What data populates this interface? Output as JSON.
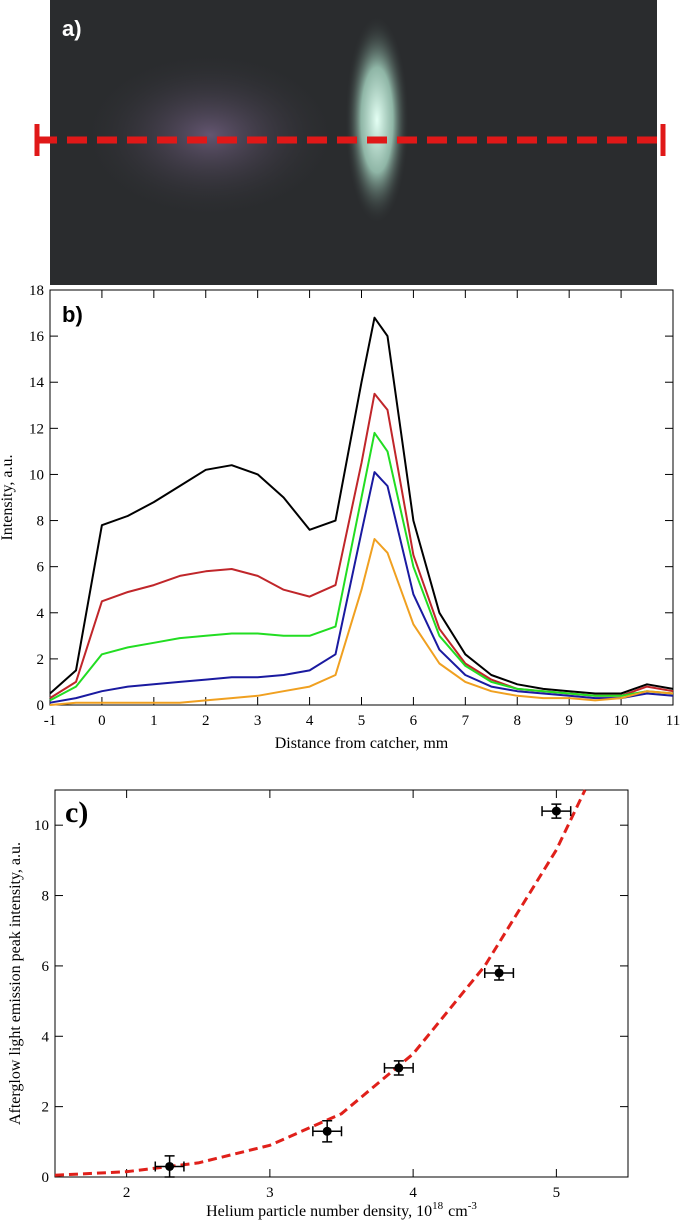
{
  "image_panel": {
    "label": "a)"
  },
  "chart_data": [
    {
      "type": "line",
      "label": "b)",
      "xlabel": "Distance from catcher, mm",
      "ylabel": "Intensity, a.u.",
      "x": [
        -1,
        -0.5,
        0,
        0.5,
        1,
        1.5,
        2,
        2.5,
        3,
        3.5,
        4,
        4.5,
        5,
        5.25,
        5.5,
        6,
        6.5,
        7,
        7.5,
        8,
        8.5,
        9,
        9.5,
        10,
        10.5,
        11
      ],
      "series": [
        {
          "color": "#000000",
          "values": [
            0.5,
            1.5,
            7.8,
            8.2,
            8.8,
            9.5,
            10.2,
            10.4,
            10.0,
            9.0,
            7.6,
            8.0,
            14.0,
            16.8,
            16.0,
            8.0,
            4.0,
            2.2,
            1.3,
            0.9,
            0.7,
            0.6,
            0.5,
            0.5,
            0.9,
            0.7
          ]
        },
        {
          "color": "#c0262a",
          "values": [
            0.3,
            1.0,
            4.5,
            4.9,
            5.2,
            5.6,
            5.8,
            5.9,
            5.6,
            5.0,
            4.7,
            5.2,
            10.5,
            13.5,
            12.8,
            6.5,
            3.3,
            1.8,
            1.1,
            0.7,
            0.6,
            0.5,
            0.4,
            0.4,
            0.8,
            0.6
          ]
        },
        {
          "color": "#22dd22",
          "values": [
            0.2,
            0.8,
            2.2,
            2.5,
            2.7,
            2.9,
            3.0,
            3.1,
            3.1,
            3.0,
            3.0,
            3.4,
            9.0,
            11.8,
            11.0,
            6.0,
            3.0,
            1.7,
            1.0,
            0.7,
            0.6,
            0.5,
            0.4,
            0.4,
            0.6,
            0.5
          ]
        },
        {
          "color": "#1a1aa0",
          "values": [
            0.1,
            0.3,
            0.6,
            0.8,
            0.9,
            1.0,
            1.1,
            1.2,
            1.2,
            1.3,
            1.5,
            2.2,
            7.5,
            10.1,
            9.5,
            4.8,
            2.4,
            1.3,
            0.8,
            0.6,
            0.5,
            0.4,
            0.3,
            0.3,
            0.5,
            0.4
          ]
        },
        {
          "color": "#f0a020",
          "values": [
            0.0,
            0.1,
            0.1,
            0.1,
            0.1,
            0.1,
            0.2,
            0.3,
            0.4,
            0.6,
            0.8,
            1.3,
            5.0,
            7.2,
            6.6,
            3.5,
            1.8,
            1.0,
            0.6,
            0.4,
            0.3,
            0.3,
            0.2,
            0.3,
            0.6,
            0.5
          ]
        }
      ],
      "xlim": [
        -1,
        11
      ],
      "xticks": [
        -1,
        0,
        1,
        2,
        3,
        4,
        5,
        6,
        7,
        8,
        9,
        10,
        11
      ],
      "ylim": [
        0,
        18
      ],
      "yticks": [
        0,
        2,
        4,
        6,
        8,
        10,
        12,
        14,
        16,
        18
      ]
    },
    {
      "type": "scatter",
      "label": "c)",
      "ylabel": "Afterglow light emission peak intensity, a.u.",
      "xlabel": "Helium particle number density, 10",
      "xlabel_exp": "18",
      "xlabel_unit": "cm",
      "xlabel_unit_exp": "-3",
      "x": [
        2.3,
        3.4,
        3.9,
        4.6,
        5.0
      ],
      "values": [
        0.3,
        1.3,
        3.1,
        5.8,
        10.4
      ],
      "xerr": [
        0.1,
        0.1,
        0.1,
        0.1,
        0.1
      ],
      "yerr": [
        0.3,
        0.3,
        0.2,
        0.2,
        0.2
      ],
      "color": "#000000",
      "fit": {
        "color": "#e0201a",
        "x": [
          1.5,
          2,
          2.5,
          3,
          3.5,
          4,
          4.5,
          5,
          5.2
        ],
        "y": [
          0.05,
          0.15,
          0.4,
          0.9,
          1.8,
          3.5,
          6,
          9.3,
          11
        ]
      },
      "xlim": [
        1.5,
        5.5
      ],
      "xticks": [
        2,
        3,
        4,
        5
      ],
      "ylim": [
        0,
        11
      ],
      "yticks": [
        0,
        2,
        4,
        6,
        8,
        10
      ]
    }
  ]
}
